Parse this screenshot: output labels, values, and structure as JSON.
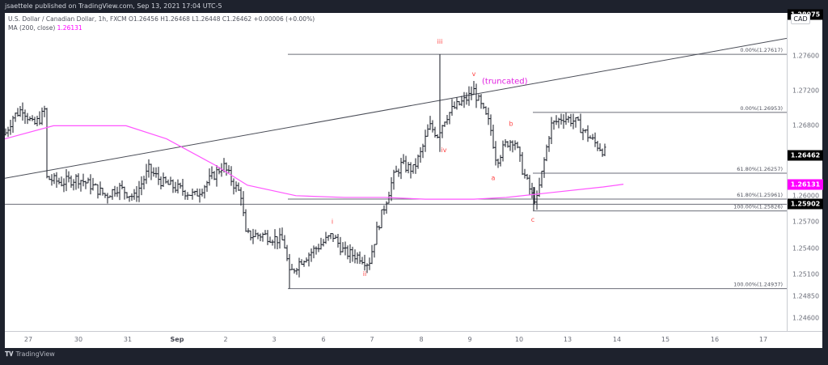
{
  "header": {
    "published": "jsaettele published on TradingView.com, Sep 13, 2021 17:04 UTC-5"
  },
  "legend": {
    "symbol_line": "U.S. Dollar / Canadian Dollar, 1h, FXCM  O1.26456  H1.26468  L1.26448  C1.26462  +0.00006 (+0.00%)",
    "ma_label": "MA (200, close)",
    "ma_value": "1.26131"
  },
  "price_axis": {
    "currency_label": "CAD",
    "top_badge": "1.28075",
    "ticks": [
      "1.27600",
      "1.27200",
      "1.26800",
      "1.26000",
      "1.25700",
      "1.25400",
      "1.25100",
      "1.24850",
      "1.24600"
    ],
    "last_price_badge": {
      "value": "1.26462",
      "color": "#000000"
    },
    "ma_badge": {
      "value": "1.26131",
      "color": "#ff00ff"
    },
    "level_badge": {
      "value": "1.25902",
      "color": "#000000"
    }
  },
  "time_axis": {
    "ticks": [
      "27",
      "30",
      "31",
      "Sep",
      "2",
      "3",
      "6",
      "7",
      "8",
      "9",
      "10",
      "13",
      "14",
      "15",
      "16",
      "17"
    ],
    "bold_tick": "Sep"
  },
  "footer": {
    "brand": "TradingView",
    "logo": "tradingview-logo-icon"
  },
  "annotations": {
    "wave_labels": [
      "i",
      "ii",
      "iii",
      "iv",
      "v",
      "a",
      "b",
      "c"
    ],
    "note": "(truncated)",
    "fib_labels": [
      "0.00%(1.27617)",
      "0.00%(1.26953)",
      "61.80%(1.26257)",
      "61.80%(1.25961)",
      "100.00%(1.25826)",
      "100.00%(1.24937)"
    ]
  },
  "chart_data": {
    "type": "bar",
    "subtype": "ohlc",
    "title": "U.S. Dollar / Canadian Dollar, 1h, FXCM",
    "xlabel": "",
    "ylabel": "CAD",
    "ylim": [
      1.244,
      1.2795
    ],
    "grid": false,
    "x": [
      "Aug 27",
      "Aug 30",
      "Aug 31",
      "Sep 1",
      "Sep 2",
      "Sep 3",
      "Sep 6",
      "Sep 7",
      "Sep 8",
      "Sep 9",
      "Sep 10",
      "Sep 13"
    ],
    "approx_close_by_day": [
      1.268,
      1.2615,
      1.26,
      1.2635,
      1.2605,
      1.2545,
      1.253,
      1.2565,
      1.2695,
      1.27,
      1.262,
      1.2646
    ],
    "series": [
      {
        "name": "USDCAD 1h close",
        "last": 1.26462,
        "open": 1.26456,
        "high": 1.26468,
        "low": 1.26448,
        "change": "+0.00006 (+0.00%)"
      },
      {
        "name": "MA (200, close)",
        "color": "#ff00ff",
        "last": 1.26131
      }
    ],
    "horizontal_levels": [
      {
        "label": "0.00%",
        "value": 1.27617
      },
      {
        "label": "0.00%",
        "value": 1.26953
      },
      {
        "label": "61.80%",
        "value": 1.26257
      },
      {
        "label": "61.80%",
        "value": 1.25961
      },
      {
        "label": "horizontal",
        "value": 1.25902
      },
      {
        "label": "100.00%",
        "value": 1.25826
      },
      {
        "label": "100.00%",
        "value": 1.24937
      }
    ],
    "trendline": {
      "from": {
        "x": "Aug 27",
        "y": 1.262
      },
      "to": {
        "x": "Sep 17",
        "y": 1.278
      }
    },
    "wave_points": [
      {
        "label": "i",
        "x": "Sep 6",
        "y": 1.256
      },
      {
        "label": "ii",
        "x": "Sep 7",
        "y": 1.252
      },
      {
        "label": "iii",
        "x": "Sep 8",
        "y": 1.2762
      },
      {
        "label": "iv",
        "x": "Sep 8",
        "y": 1.2665
      },
      {
        "label": "v",
        "x": "Sep 9",
        "y": 1.273
      },
      {
        "label": "a",
        "x": "Sep 9",
        "y": 1.263
      },
      {
        "label": "b",
        "x": "Sep 10",
        "y": 1.2668
      },
      {
        "label": "c",
        "x": "Sep 10",
        "y": 1.2583
      }
    ]
  }
}
